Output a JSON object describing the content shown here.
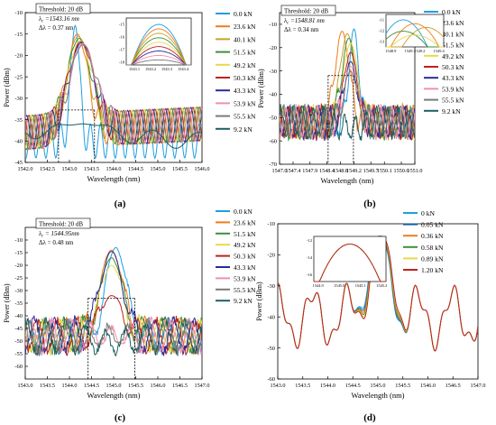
{
  "panel_labels": [
    "(a)",
    "(b)",
    "(c)",
    "(d)"
  ],
  "chart_data": [
    {
      "id": "a",
      "type": "line",
      "xlabel": "Wavelength (nm)",
      "ylabel": "Power (dBm)",
      "xlim": [
        1542.0,
        1546.0
      ],
      "ylim": [
        -45,
        -10
      ],
      "xticks": [
        1542.0,
        1542.5,
        1543.0,
        1543.5,
        1544.0,
        1544.5,
        1545.0,
        1545.5,
        1546.0
      ],
      "yticks": [
        -45,
        -40,
        -35,
        -30,
        -25,
        -20,
        -15,
        -10
      ],
      "legend_position": "right",
      "series": [
        {
          "name": "0.0 kN",
          "color": "#1f9fe0",
          "peak": 1543.13,
          "peak_power": -13,
          "width": 0.22,
          "floor": -33,
          "style": "sharp"
        },
        {
          "name": "23.6 kN",
          "color": "#f07c1a",
          "peak": 1543.18,
          "peak_power": -15,
          "width": 0.5,
          "floor": -38,
          "style": "broad"
        },
        {
          "name": "40.1 kN",
          "color": "#c8a12a",
          "peak": 1543.2,
          "peak_power": -15.5,
          "width": 0.55,
          "floor": -38,
          "style": "broad"
        },
        {
          "name": "51.5 kN",
          "color": "#3e8f3e",
          "peak": 1543.22,
          "peak_power": -16,
          "width": 0.6,
          "floor": -39,
          "style": "broad"
        },
        {
          "name": "49.2 kN",
          "color": "#e8d94a",
          "peak": 1543.24,
          "peak_power": -16.5,
          "width": 0.6,
          "floor": -38,
          "style": "broad"
        },
        {
          "name": "50.3 kN",
          "color": "#c02020",
          "peak": 1543.26,
          "peak_power": -16.8,
          "width": 0.62,
          "floor": -38,
          "style": "broad"
        },
        {
          "name": "43.3 kN",
          "color": "#2a2a9a",
          "peak": 1543.28,
          "peak_power": -17,
          "width": 0.62,
          "floor": -38,
          "style": "broad"
        },
        {
          "name": "53.9 kN",
          "color": "#f08fb0",
          "peak": 1543.3,
          "peak_power": -17.2,
          "width": 0.64,
          "floor": -38,
          "style": "broad"
        },
        {
          "name": "55.5 kN",
          "color": "#7a7a7a",
          "peak": 1543.3,
          "peak_power": -17.5,
          "width": 0.64,
          "floor": -38,
          "style": "broad"
        },
        {
          "name": "9.2 kN",
          "color": "#1f5f5f",
          "peak": 1543.3,
          "peak_power": -36,
          "width": 1.2,
          "floor": -42,
          "style": "flat"
        }
      ],
      "annotations": {
        "threshold": "Threshold: 20 dB",
        "center_symbol": "λ",
        "center_sub": "c",
        "center": "=1543.16 nm",
        "bandwidth": "Δλ = 0.37 nm"
      },
      "inset": {
        "xticks": [
          1543.1,
          1543.2,
          1543.3,
          1543.4
        ],
        "yticks": [
          -15,
          -16,
          -17,
          -18
        ],
        "xlim": [
          1543.05,
          1543.45
        ],
        "ylim": [
          -18.2,
          -14.5
        ]
      }
    },
    {
      "id": "b",
      "type": "line",
      "xlabel": "Wavelength (nm)",
      "ylabel": "Power (dBm)",
      "xlim": [
        1547.0,
        1551.0
      ],
      "ylim": [
        -70,
        -5
      ],
      "xticks": [
        1547.0,
        1547.4,
        1547.9,
        1548.4,
        1548.8,
        1549.2,
        1549.7,
        1550.1,
        1550.6,
        1551.0
      ],
      "yticks": [
        -70,
        -60,
        -50,
        -40,
        -30,
        -20,
        -10
      ],
      "legend_position": "right",
      "series": [
        {
          "name": "0.0 kN",
          "color": "#1f9fe0",
          "peak": 1549.2,
          "peak_power": -12,
          "width": 0.3
        },
        {
          "name": "23.6 kN",
          "color": "#f07c1a",
          "peak": 1548.85,
          "peak_power": -13,
          "width": 0.45
        },
        {
          "name": "40.1 kN",
          "color": "#c8a12a",
          "peak": 1549.0,
          "peak_power": -14,
          "width": 0.45
        },
        {
          "name": "51.5 kN",
          "color": "#3e8f3e",
          "peak": 1549.05,
          "peak_power": -16,
          "width": 0.45
        },
        {
          "name": "49.2 kN",
          "color": "#e8d94a",
          "peak": 1549.1,
          "peak_power": -18,
          "width": 0.45
        },
        {
          "name": "50.3 kN",
          "color": "#c02020",
          "peak": 1549.1,
          "peak_power": -22,
          "width": 0.42
        },
        {
          "name": "43.3 kN",
          "color": "#2a2a9a",
          "peak": 1549.1,
          "peak_power": -26,
          "width": 0.4
        },
        {
          "name": "53.9 kN",
          "color": "#f08fb0",
          "peak": 1549.1,
          "peak_power": -28,
          "width": 0.4
        },
        {
          "name": "55.5 kN",
          "color": "#7a7a7a",
          "peak": 1549.1,
          "peak_power": -30,
          "width": 0.4
        },
        {
          "name": "9.2 kN",
          "color": "#1f5f5f",
          "peak": 1549.1,
          "peak_power": -62,
          "width": 0.6
        }
      ],
      "annotations": {
        "threshold": "Threshold: 20 dB",
        "center_symbol": "λ",
        "center_sub": "c",
        "center": "=1548.81 nm",
        "bandwidth": "Δλ = 0.34 nm"
      },
      "inset": {
        "xticks": [
          1548.9,
          1549.1,
          1549.2,
          1549.4
        ],
        "yticks": [
          -11,
          -12,
          -13
        ],
        "xlim": [
          1548.85,
          1549.45
        ],
        "ylim": [
          -13.5,
          -10.5
        ]
      }
    },
    {
      "id": "c",
      "type": "line",
      "xlabel": "Wavelength (nm)",
      "ylabel": "Power (dBm)",
      "xlim": [
        1543.0,
        1547.0
      ],
      "ylim": [
        -65,
        -5
      ],
      "xticks": [
        1543.0,
        1543.5,
        1544.0,
        1544.5,
        1545.0,
        1545.5,
        1546.0,
        1546.5,
        1547.0
      ],
      "yticks": [
        -60,
        -55,
        -50,
        -45,
        -40,
        -35,
        -30,
        -25,
        -20,
        -15,
        -10
      ],
      "legend_position": "right",
      "series": [
        {
          "name": "0.0 kN",
          "color": "#1f9fe0",
          "peak": 1545.05,
          "peak_power": -13,
          "width": 0.5
        },
        {
          "name": "23.6 kN",
          "color": "#f07c1a",
          "peak": 1544.95,
          "peak_power": -14,
          "width": 0.55
        },
        {
          "name": "51.5 kN",
          "color": "#3e8f3e",
          "peak": 1544.95,
          "peak_power": -17,
          "width": 0.55
        },
        {
          "name": "49.2 kN",
          "color": "#e8d94a",
          "peak": 1544.95,
          "peak_power": -20,
          "width": 0.55
        },
        {
          "name": "50.3 kN",
          "color": "#c02020",
          "peak": 1544.95,
          "peak_power": -32,
          "width": 0.55
        },
        {
          "name": "43.3 kN",
          "color": "#2a2a9a",
          "peak": 1544.95,
          "peak_power": -14.5,
          "width": 0.55
        },
        {
          "name": "53.9 kN",
          "color": "#f08fb0",
          "peak": 1544.95,
          "peak_power": -50,
          "width": 0.6
        },
        {
          "name": "55.5 kN",
          "color": "#7a7a7a",
          "peak": 1544.95,
          "peak_power": -50,
          "width": 0.6
        },
        {
          "name": "9.2 kN",
          "color": "#1f5f5f",
          "peak": 1544.95,
          "peak_power": -58,
          "width": 0.8
        }
      ],
      "annotations": {
        "threshold": "Threshold: 20 dB",
        "center_symbol": "λ",
        "center_sub": "c",
        "center": "= 1544.95nm",
        "bandwidth": "Δλ = 0.48 nm"
      }
    },
    {
      "id": "d",
      "type": "line",
      "xlabel": "Wavelength (nm)",
      "ylabel": "Power (dBm)",
      "xlim": [
        1543.0,
        1547.0
      ],
      "ylim": [
        -60,
        -10
      ],
      "xticks": [
        1543.0,
        1543.5,
        1544.0,
        1544.5,
        1545.0,
        1545.5,
        1546.0,
        1546.5,
        1547.0
      ],
      "yticks": [
        -60,
        -50,
        -40,
        -30,
        -20,
        -10
      ],
      "legend_position": "top-right",
      "series": [
        {
          "name": "0 kN",
          "color": "#1f9fe0",
          "peak": 1545.02,
          "peak_power": -14
        },
        {
          "name": "0.05 kN",
          "color": "#1a5fa0",
          "peak": 1545.03,
          "peak_power": -14
        },
        {
          "name": "0.36 kN",
          "color": "#f07c1a",
          "peak": 1545.04,
          "peak_power": -14
        },
        {
          "name": "0.58 kN",
          "color": "#3e8f3e",
          "peak": 1545.05,
          "peak_power": -14
        },
        {
          "name": "0.89 kN",
          "color": "#e8d94a",
          "peak": 1545.06,
          "peak_power": -14
        },
        {
          "name": "1.20 kN",
          "color": "#c02020",
          "peak": 1545.07,
          "peak_power": -14
        }
      ],
      "inset": {
        "xticks": [
          1544.9,
          1545.0,
          1545.1,
          1545.2
        ],
        "yticks": [
          -12,
          -14,
          -16
        ],
        "xlim": [
          1544.88,
          1545.22
        ],
        "ylim": [
          -16.8,
          -11.5
        ]
      }
    }
  ]
}
